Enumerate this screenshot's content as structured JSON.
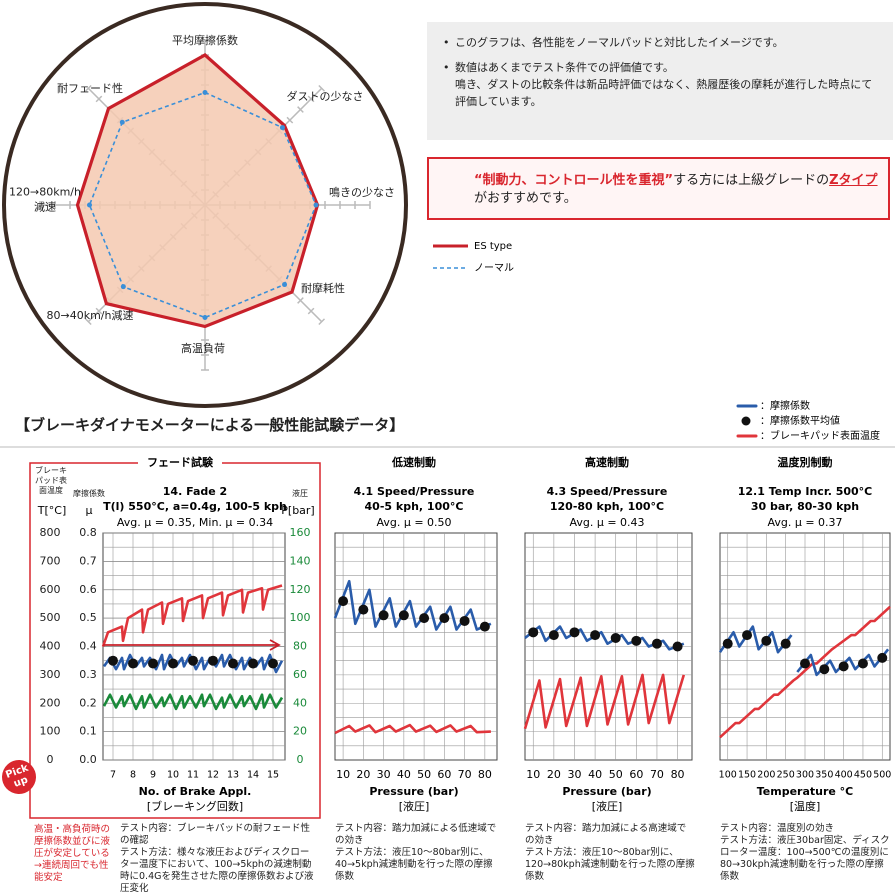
{
  "notes": [
    [
      "このグラフは、各性能をノーマルパッドと対比したイメージです。"
    ],
    [
      "数値はあくまでテスト条件での評価値です。",
      "鳴き、ダストの比較条件は新品時評価ではなく、熱履歴後の摩耗が進行した時点にて評価しています。"
    ]
  ],
  "recommendation": {
    "highlight": "“制動力、コントロール性を重視”",
    "text1": "する方には上級グレードの",
    "link": "Zタイプ",
    "text2": "がおすすめです。"
  },
  "section_title": "【ブレーキダイナモメーターによる一般性能試験データ】",
  "test_legend": [
    {
      "label": "：摩擦係数",
      "color": "#2a5caa",
      "marker": "line"
    },
    {
      "label": "：摩擦係数平均値",
      "color": "#111111",
      "marker": "dot"
    },
    {
      "label": "：ブレーキパッド表面温度",
      "color": "#e0353b",
      "marker": "line"
    }
  ],
  "badge": "Pick up",
  "chart_data": [
    {
      "type": "radar",
      "categories": [
        "平均摩擦係数",
        "ダストの少なさ",
        "鳴きの少なさ",
        "耐摩耗性",
        "高温負荷",
        "80→40km/h減速",
        "120→80km/h減速",
        "耐フェード性"
      ],
      "rlim": [
        0,
        10
      ],
      "series": [
        {
          "name": "ES type",
          "color": "#c8202a",
          "fill": "#f5c9b0",
          "dash": false,
          "markers": false,
          "values": [
            10,
            7.5,
            7.5,
            8.2,
            8.1,
            9.3,
            8.5,
            9.1
          ]
        },
        {
          "name": "ノーマル",
          "color": "#3a8fd8",
          "fill": null,
          "dash": true,
          "markers": true,
          "values": [
            7.5,
            7.3,
            7.4,
            7.5,
            7.5,
            7.7,
            7.7,
            7.8
          ]
        }
      ]
    },
    {
      "type": "line",
      "title": "フェード試験",
      "subtitle": [
        "14. Fade 2",
        "T(l) 550°C, a=0.4g, 100-5 kph"
      ],
      "annotation": "Avg. μ = 0.35, Min. μ = 0.34",
      "xlabel": "No. of Brake Appl.",
      "xlabel_ja": "[ブレーキング回数]",
      "xlim": [
        6.5,
        15.6
      ],
      "xticks": [
        7,
        8,
        9,
        10,
        11,
        12,
        13,
        14,
        15
      ],
      "ylabel": "μ",
      "ylabel_ja": "摩擦係数",
      "ylim": [
        0,
        0.8
      ],
      "yticks": [
        {
          "value": 0,
          "label": "0.0"
        },
        0.1,
        0.2,
        0.3,
        0.4,
        0.5,
        0.6,
        0.7,
        0.8
      ],
      "y_temp_label": "T[°C]",
      "y_temp_label_ja": "ブレーキパッド表面温度",
      "y_temp_lim": [
        0,
        800
      ],
      "y_temp_ticks": [
        0,
        100,
        200,
        300,
        400,
        500,
        600,
        700,
        800
      ],
      "y2label": "P[bar]",
      "y2label_ja": "液圧",
      "y2lim": [
        0,
        160
      ],
      "y2ticks": [
        0,
        20,
        40,
        60,
        80,
        100,
        120,
        140,
        160
      ],
      "y2color": "#1a8a3a",
      "grid": true,
      "series": [
        {
          "axis": "temp",
          "mode": "line",
          "color": "#e0353b",
          "x": [
            6.5,
            6.75,
            7.45,
            7.5,
            7.75,
            8.45,
            8.5,
            8.75,
            9.45,
            9.5,
            9.75,
            10.45,
            10.5,
            10.75,
            11.45,
            11.5,
            11.75,
            12.45,
            12.5,
            12.75,
            13.45,
            13.5,
            13.75,
            14.45,
            14.5,
            14.75,
            15.45
          ],
          "values": [
            400,
            450,
            470,
            420,
            500,
            530,
            450,
            530,
            555,
            480,
            550,
            570,
            490,
            560,
            580,
            500,
            570,
            590,
            510,
            580,
            600,
            520,
            590,
            605,
            530,
            600,
            615
          ]
        },
        {
          "axis": "y",
          "mode": "line",
          "color": "#2a5caa",
          "x": [
            6.55,
            6.85,
            7.15,
            7.45,
            7.55,
            7.85,
            8.15,
            8.45,
            8.55,
            8.85,
            9.15,
            9.45,
            9.55,
            9.85,
            10.15,
            10.45,
            10.55,
            10.85,
            11.15,
            11.45,
            11.55,
            11.85,
            12.15,
            12.45,
            12.55,
            12.85,
            13.15,
            13.45,
            13.55,
            13.85,
            14.15,
            14.45,
            14.55,
            14.85,
            15.15,
            15.45
          ],
          "values": [
            0.33,
            0.36,
            0.32,
            0.36,
            0.32,
            0.37,
            0.33,
            0.36,
            0.33,
            0.36,
            0.32,
            0.37,
            0.32,
            0.37,
            0.33,
            0.36,
            0.33,
            0.37,
            0.32,
            0.36,
            0.32,
            0.36,
            0.33,
            0.37,
            0.33,
            0.37,
            0.32,
            0.36,
            0.32,
            0.36,
            0.33,
            0.36,
            0.32,
            0.37,
            0.31,
            0.35
          ]
        },
        {
          "axis": "y2",
          "mode": "line",
          "color": "#1a8a3a",
          "x": [
            6.55,
            6.85,
            7.15,
            7.45,
            7.55,
            7.85,
            8.15,
            8.45,
            8.55,
            8.85,
            9.15,
            9.45,
            9.55,
            9.85,
            10.15,
            10.45,
            10.55,
            10.85,
            11.15,
            11.45,
            11.55,
            11.85,
            12.15,
            12.45,
            12.55,
            12.85,
            13.15,
            13.45,
            13.55,
            13.85,
            14.15,
            14.45,
            14.55,
            14.85,
            15.15,
            15.45
          ],
          "values": [
            38,
            46,
            37,
            45,
            38,
            46,
            36,
            45,
            37,
            46,
            37,
            44,
            38,
            46,
            36,
            45,
            37,
            45,
            37,
            46,
            38,
            46,
            36,
            44,
            37,
            46,
            37,
            45,
            38,
            45,
            36,
            46,
            37,
            46,
            37,
            44
          ]
        },
        {
          "axis": "y",
          "mode": "markers",
          "color": "#111111",
          "x": [
            7,
            8,
            9,
            10,
            11,
            12,
            13,
            14,
            15
          ],
          "values": [
            0.35,
            0.34,
            0.34,
            0.34,
            0.35,
            0.35,
            0.34,
            0.34,
            0.34
          ]
        }
      ],
      "highlight": "高温・高負荷時の摩擦係数並びに液圧が安定している→連続周回でも性能安定",
      "description": [
        "テスト内容：ブレーキパッドの耐フェード性の確認",
        "テスト方法：様々な液圧およびディスクローター温度下において、100→5kphの減速制動時に0.4Gを発生させた際の摩擦係数および液圧変化"
      ]
    },
    {
      "type": "line",
      "title": "低速制動",
      "subtitle": [
        "4.1 Speed/Pressure",
        "40-5 kph, 100°C"
      ],
      "annotation": "Avg. μ = 0.50",
      "xlabel": "Pressure (bar)",
      "xlabel_ja": "[液圧]",
      "xlim": [
        6,
        86
      ],
      "xticks": [
        10,
        20,
        30,
        40,
        50,
        60,
        70,
        80
      ],
      "ylim": [
        0,
        0.8
      ],
      "y_temp_lim": [
        0,
        800
      ],
      "grid": true,
      "series": [
        {
          "axis": "temp",
          "mode": "line",
          "color": "#e0353b",
          "x": [
            6,
            13,
            16,
            23,
            26,
            33,
            36,
            43,
            46,
            53,
            56,
            63,
            66,
            73,
            76,
            83
          ],
          "values": [
            95,
            120,
            100,
            122,
            98,
            120,
            100,
            123,
            100,
            121,
            99,
            122,
            100,
            120,
            98,
            100
          ]
        },
        {
          "axis": "y",
          "mode": "line",
          "color": "#2a5caa",
          "x": [
            6,
            13,
            16,
            23,
            26,
            33,
            36,
            43,
            46,
            53,
            56,
            63,
            66,
            73,
            76,
            83
          ],
          "values": [
            0.5,
            0.63,
            0.48,
            0.6,
            0.47,
            0.57,
            0.47,
            0.56,
            0.47,
            0.54,
            0.46,
            0.54,
            0.46,
            0.53,
            0.46,
            0.48
          ]
        },
        {
          "axis": "y",
          "mode": "markers",
          "color": "#111111",
          "x": [
            10,
            20,
            30,
            40,
            50,
            60,
            70,
            80
          ],
          "values": [
            0.56,
            0.53,
            0.51,
            0.51,
            0.5,
            0.5,
            0.49,
            0.47
          ]
        }
      ],
      "description": [
        "テスト内容：踏力加減による低速域での効き",
        "テスト方法：液圧10～80bar別に、40→5kph減速制動を行った際の摩擦係数"
      ]
    },
    {
      "type": "line",
      "title": "高速制動",
      "subtitle": [
        "4.3 Speed/Pressure",
        "120-80 kph, 100°C"
      ],
      "annotation": "Avg. μ = 0.43",
      "xlabel": "Pressure (bar)",
      "xlabel_ja": "[液圧]",
      "xlim": [
        6,
        87
      ],
      "xticks": [
        10,
        20,
        30,
        40,
        50,
        60,
        70,
        80
      ],
      "ylim": [
        0,
        0.8
      ],
      "y_temp_lim": [
        0,
        800
      ],
      "grid": true,
      "series": [
        {
          "axis": "temp",
          "mode": "line",
          "color": "#e0353b",
          "x": [
            6,
            13,
            16,
            23,
            26,
            33,
            36,
            43,
            46,
            53,
            56,
            63,
            66,
            73,
            76,
            83
          ],
          "values": [
            110,
            280,
            115,
            285,
            120,
            290,
            120,
            295,
            125,
            295,
            125,
            300,
            130,
            300,
            130,
            300
          ]
        },
        {
          "axis": "y",
          "mode": "line",
          "color": "#2a5caa",
          "x": [
            6,
            13,
            16,
            23,
            26,
            33,
            36,
            43,
            46,
            53,
            56,
            63,
            66,
            73,
            76,
            83
          ],
          "values": [
            0.43,
            0.47,
            0.42,
            0.47,
            0.43,
            0.46,
            0.42,
            0.45,
            0.41,
            0.44,
            0.41,
            0.43,
            0.4,
            0.42,
            0.39,
            0.41
          ]
        },
        {
          "axis": "y",
          "mode": "markers",
          "color": "#111111",
          "x": [
            10,
            20,
            30,
            40,
            50,
            60,
            70,
            80
          ],
          "values": [
            0.45,
            0.44,
            0.45,
            0.44,
            0.43,
            0.42,
            0.41,
            0.4
          ]
        }
      ],
      "description": [
        "テスト内容：踏力加減による高速域での効き",
        "テスト方法：液圧10～80bar別に、120→80kph減速制動を行った際の摩擦係数"
      ]
    },
    {
      "type": "line",
      "title": "温度別制動",
      "subtitle": [
        "12.1 Temp Incr. 500°C",
        "30 bar, 80-30 kph"
      ],
      "annotation": "Avg. μ = 0.37",
      "xlabel": "Temperature °C",
      "xlabel_ja": "[温度]",
      "xlim": [
        80,
        520
      ],
      "xticks": [
        100,
        150,
        200,
        250,
        300,
        350,
        400,
        450,
        500
      ],
      "ylim": [
        0,
        0.8
      ],
      "y_temp_lim": [
        0,
        800
      ],
      "grid": true,
      "series": [
        {
          "axis": "temp",
          "mode": "line",
          "color": "#e0353b",
          "x": [
            80,
            120,
            130,
            170,
            180,
            220,
            230,
            270,
            280,
            320,
            330,
            370,
            380,
            420,
            430,
            470,
            480,
            520
          ],
          "values": [
            80,
            130,
            130,
            180,
            180,
            230,
            230,
            280,
            290,
            340,
            340,
            390,
            400,
            440,
            440,
            490,
            490,
            540
          ]
        },
        {
          "axis": "y",
          "mode": "line",
          "color": "#2a5caa",
          "x": [
            80,
            115,
            130,
            165,
            180,
            215,
            230,
            265,
            270,
            280,
            315,
            330,
            365,
            380,
            415,
            430,
            465,
            480,
            515
          ],
          "values": [
            0.38,
            0.45,
            0.4,
            0.47,
            0.39,
            0.45,
            0.38,
            0.44,
            null,
            0.31,
            0.37,
            0.3,
            0.35,
            0.31,
            0.36,
            0.32,
            0.37,
            0.33,
            0.39
          ]
        },
        {
          "axis": "y",
          "mode": "markers",
          "color": "#111111",
          "x": [
            100,
            150,
            200,
            250,
            300,
            350,
            400,
            450,
            500
          ],
          "values": [
            0.41,
            0.44,
            0.42,
            0.41,
            0.34,
            0.32,
            0.33,
            0.34,
            0.36
          ]
        }
      ],
      "description": [
        "テスト内容：温度別の効き",
        "テスト方法：液圧30bar固定、ディスクローター温度：100→500℃の温度別に80→30kph減速制動を行った際の摩擦係数"
      ]
    }
  ]
}
